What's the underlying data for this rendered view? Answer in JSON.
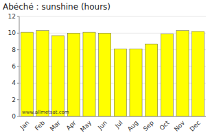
{
  "chart_data": {
    "type": "bar",
    "title": "Abéché : sunshine (hours)",
    "categories": [
      "Jan",
      "Feb",
      "Mar",
      "Apr",
      "May",
      "Jun",
      "Jul",
      "Aug",
      "Sep",
      "Oct",
      "Nov",
      "Dec"
    ],
    "values": [
      10.1,
      10.3,
      9.7,
      10.0,
      10.1,
      10.0,
      8.1,
      8.1,
      8.7,
      9.9,
      10.3,
      10.2
    ],
    "color": "#ffff00",
    "ylim": [
      0,
      12
    ],
    "yticks": [
      0,
      2,
      4,
      6,
      8,
      10,
      12
    ],
    "annotations": [
      "www.allmetsat.com"
    ]
  }
}
